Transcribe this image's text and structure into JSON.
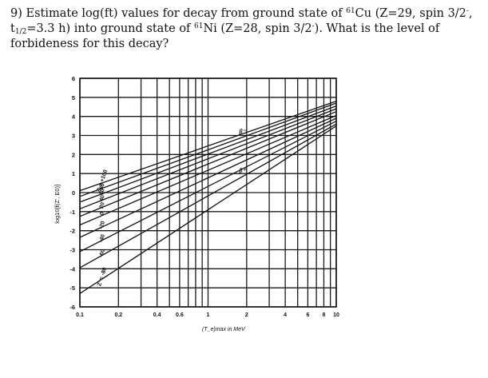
{
  "question": {
    "number": "9)",
    "line1_a": " Estimate log(ft) values for decay from ground state of ",
    "cu_mass": "61",
    "line1_b": "Cu (Z=29, spin 3/2",
    "cu_parity": "-",
    "line1_c": ",",
    "t_symbol": "t",
    "t_sub": "1/2",
    "line2_a": "=3.3 h) into ground state of ",
    "ni_mass": "61",
    "line2_b": "Ni (Z=28, spin 3/2",
    "ni_parity": "-",
    "line2_c": "). What is the level of",
    "line3": "forbideness for this decay?"
  },
  "chart_data": {
    "type": "line",
    "xlabel": "(T_e)max in MeV",
    "ylabel": "log10[f(Z', E0)]",
    "x_scale": "log",
    "xlim": [
      0.1,
      10
    ],
    "ylim": [
      -6,
      6
    ],
    "grid": true,
    "x_ticks": [
      "0.1",
      "0.2",
      "0.4",
      "0.6",
      "1",
      "2",
      "4",
      "6",
      "8",
      "10"
    ],
    "y_ticks": [
      "6",
      "5",
      "4",
      "3",
      "2",
      "1",
      "0",
      "-1",
      "-2",
      "-3",
      "-4",
      "-5",
      "-6"
    ],
    "annotations": {
      "beta_minus": "β⁻",
      "beta_plus": "β⁺",
      "z_top": "Z' = +100",
      "z_bottom": "Z' = -80"
    },
    "series": [
      {
        "name": "+100",
        "x": [
          0.1,
          10
        ],
        "y": [
          0.1,
          4.8
        ]
      },
      {
        "name": "80",
        "x": [
          0.1,
          10
        ],
        "y": [
          -0.2,
          4.7
        ]
      },
      {
        "name": "60",
        "x": [
          0.1,
          10
        ],
        "y": [
          -0.5,
          4.55
        ]
      },
      {
        "name": "40",
        "x": [
          0.1,
          10
        ],
        "y": [
          -0.85,
          4.4
        ]
      },
      {
        "name": "20",
        "x": [
          0.1,
          10
        ],
        "y": [
          -1.25,
          4.25
        ]
      },
      {
        "name": "0",
        "x": [
          0.1,
          10
        ],
        "y": [
          -1.7,
          4.05
        ]
      },
      {
        "name": "-20",
        "x": [
          0.1,
          10
        ],
        "y": [
          -2.35,
          3.9
        ]
      },
      {
        "name": "-40",
        "x": [
          0.1,
          10
        ],
        "y": [
          -3.1,
          3.75
        ]
      },
      {
        "name": "-60",
        "x": [
          0.1,
          10
        ],
        "y": [
          -3.95,
          3.6
        ]
      },
      {
        "name": "-80",
        "x": [
          0.1,
          10
        ],
        "y": [
          -5.3,
          3.5
        ]
      }
    ]
  }
}
